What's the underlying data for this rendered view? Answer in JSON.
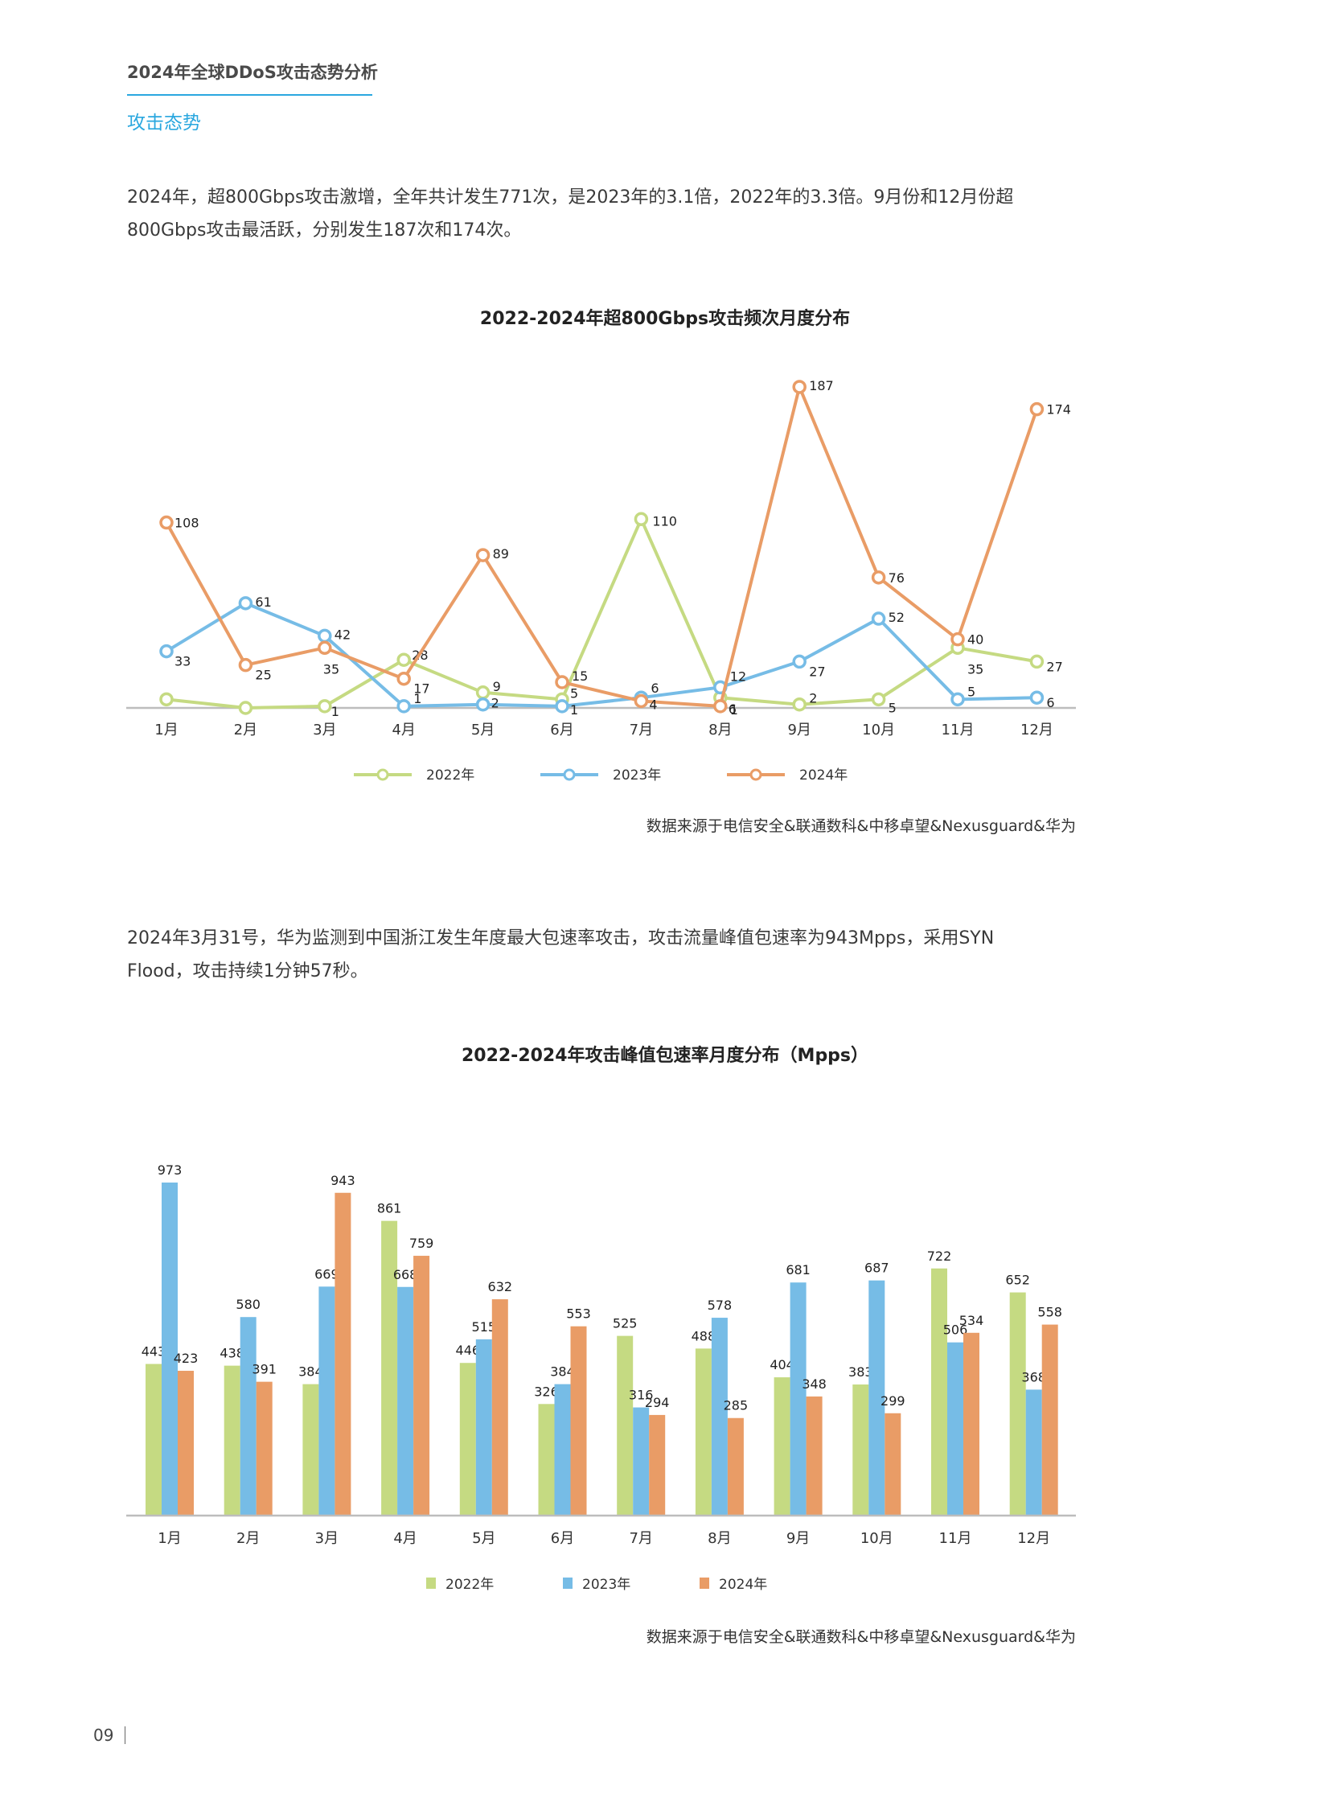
{
  "header": {
    "title": "2024年全球DDoS攻击态势分析",
    "section": "攻击态势"
  },
  "paragraphs": {
    "p1_line1": "2024年，超800Gbps攻击激增，全年共计发生771次，是2023年的3.1倍，2022年的3.3倍。9月份和12月份超",
    "p1_line2": "800Gbps攻击最活跃，分别发生187次和174次。",
    "p2_line1": "2024年3月31号，华为监测到中国浙江发生年度最大包速率攻击，攻击流量峰值包速率为943Mpps，采用SYN",
    "p2_line2": "Flood，攻击持续1分钟57秒。"
  },
  "colors": {
    "2022": "#c5da82",
    "2023": "#76bce6",
    "2024": "#e99c66",
    "axis": "#bdbdbd",
    "accent": "#2aa7df"
  },
  "chart1": {
    "title": "2022-2024年超800Gbps攻击频次月度分布",
    "source": "数据来源于电信安全&联通数科&中移卓望&Nexusguard&华为"
  },
  "chart2": {
    "title": "2022-2024年攻击峰值包速率月度分布（Mpps）",
    "source": "数据来源于电信安全&联通数科&中移卓望&Nexusguard&华为"
  },
  "page_number": "09",
  "chart_data": [
    {
      "type": "line",
      "title": "2022-2024年超800Gbps攻击频次月度分布",
      "xlabel": "",
      "ylabel": "",
      "categories": [
        "1月",
        "2月",
        "3月",
        "4月",
        "5月",
        "6月",
        "7月",
        "8月",
        "9月",
        "10月",
        "11月",
        "12月"
      ],
      "series": [
        {
          "name": "2022年",
          "values": [
            5,
            0,
            1,
            28,
            9,
            5,
            110,
            6,
            2,
            5,
            35,
            27
          ],
          "labels": [
            "",
            "",
            "1",
            "28",
            "9",
            "5",
            "110",
            "6",
            "2",
            "5",
            "35",
            "27"
          ]
        },
        {
          "name": "2023年",
          "values": [
            33,
            61,
            42,
            1,
            2,
            1,
            6,
            12,
            27,
            52,
            5,
            6
          ],
          "labels": [
            "33",
            "61",
            "42",
            "1",
            "2",
            "1",
            "6",
            "12",
            "27",
            "52",
            "5",
            "6"
          ]
        },
        {
          "name": "2024年",
          "values": [
            108,
            25,
            35,
            17,
            89,
            15,
            4,
            1,
            187,
            76,
            40,
            174
          ],
          "labels": [
            "108",
            "25",
            "35",
            "17",
            "89",
            "15",
            "4",
            "1",
            "187",
            "76",
            "40",
            "174"
          ]
        }
      ],
      "legend_position": "bottom",
      "grid": false,
      "ylim": [
        0,
        187
      ]
    },
    {
      "type": "bar",
      "title": "2022-2024年攻击峰值包速率月度分布（Mpps）",
      "xlabel": "",
      "ylabel": "Mpps",
      "categories": [
        "1月",
        "2月",
        "3月",
        "4月",
        "5月",
        "6月",
        "7月",
        "8月",
        "9月",
        "10月",
        "11月",
        "12月"
      ],
      "series": [
        {
          "name": "2022年",
          "values": [
            443,
            438,
            384,
            861,
            446,
            326,
            525,
            488,
            404,
            383,
            722,
            652
          ]
        },
        {
          "name": "2023年",
          "values": [
            973,
            580,
            669,
            668,
            515,
            384,
            316,
            578,
            681,
            687,
            506,
            368
          ]
        },
        {
          "name": "2024年",
          "values": [
            423,
            391,
            943,
            759,
            632,
            553,
            294,
            285,
            348,
            299,
            534,
            558
          ]
        }
      ],
      "legend_position": "bottom",
      "grid": false,
      "ylim": [
        0,
        1000
      ]
    }
  ]
}
